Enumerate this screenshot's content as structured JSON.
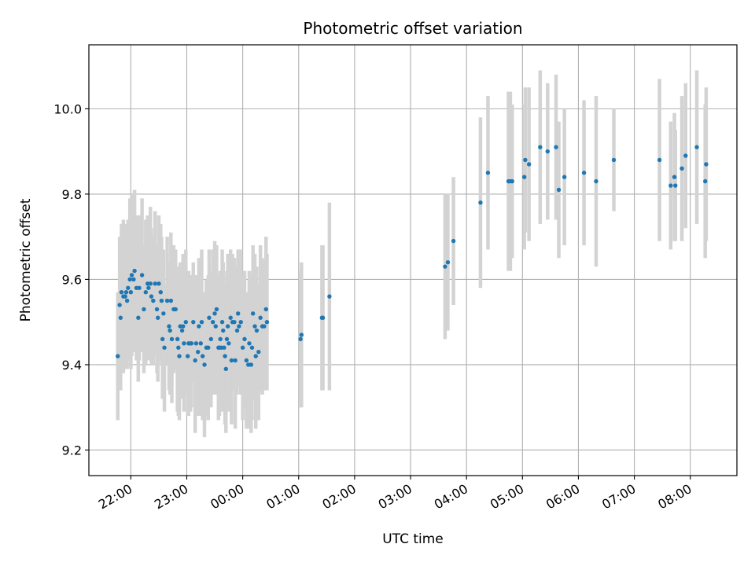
{
  "chart_data": {
    "type": "scatter",
    "title": "Photometric offset variation",
    "xlabel": "UTC time",
    "ylabel": "Photometric offset",
    "x_ticks": [
      "22:00",
      "23:00",
      "00:00",
      "01:00",
      "02:00",
      "03:00",
      "04:00",
      "05:00",
      "06:00",
      "07:00",
      "08:00"
    ],
    "y_ticks": [
      "9.2",
      "9.4",
      "9.6",
      "9.8",
      "10.0"
    ],
    "xlim": [
      "21:15",
      "08:50"
    ],
    "ylim": [
      9.14,
      10.15
    ],
    "grid": true,
    "colors": {
      "points": "#1f77b4",
      "errorbars": "#d3d3d3",
      "grid": "#b0b0b0"
    },
    "series": [
      {
        "points": [
          [
            "21:46",
            9.42,
            0.15
          ],
          [
            "21:48",
            9.54,
            0.16
          ],
          [
            "21:49",
            9.51,
            0.17
          ],
          [
            "21:50",
            9.57,
            0.16
          ],
          [
            "21:52",
            9.56,
            0.18
          ],
          [
            "21:54",
            9.56,
            0.17
          ],
          [
            "21:55",
            9.57,
            0.15
          ],
          [
            "21:56",
            9.55,
            0.16
          ],
          [
            "21:57",
            9.58,
            0.16
          ],
          [
            "21:59",
            9.6,
            0.19
          ],
          [
            "22:00",
            9.57,
            0.18
          ],
          [
            "22:01",
            9.61,
            0.19
          ],
          [
            "22:03",
            9.6,
            0.17
          ],
          [
            "22:04",
            9.62,
            0.19
          ],
          [
            "22:06",
            9.58,
            0.17
          ],
          [
            "22:08",
            9.51,
            0.15
          ],
          [
            "22:09",
            9.58,
            0.17
          ],
          [
            "22:12",
            9.61,
            0.18
          ],
          [
            "22:14",
            9.53,
            0.15
          ],
          [
            "22:16",
            9.57,
            0.17
          ],
          [
            "22:18",
            9.59,
            0.16
          ],
          [
            "22:19",
            9.58,
            0.17
          ],
          [
            "22:21",
            9.59,
            0.18
          ],
          [
            "22:22",
            9.56,
            0.16
          ],
          [
            "22:24",
            9.55,
            0.15
          ],
          [
            "22:26",
            9.59,
            0.17
          ],
          [
            "22:28",
            9.53,
            0.15
          ],
          [
            "22:29",
            9.51,
            0.15
          ],
          [
            "22:30",
            9.59,
            0.16
          ],
          [
            "22:32",
            9.57,
            0.16
          ],
          [
            "22:33",
            9.55,
            0.15
          ],
          [
            "22:34",
            9.46,
            0.14
          ],
          [
            "22:35",
            9.52,
            0.15
          ],
          [
            "22:36",
            9.44,
            0.15
          ],
          [
            "22:39",
            9.55,
            0.15
          ],
          [
            "22:41",
            9.49,
            0.15
          ],
          [
            "22:42",
            9.48,
            0.15
          ],
          [
            "22:43",
            9.55,
            0.16
          ],
          [
            "22:44",
            9.46,
            0.15
          ],
          [
            "22:46",
            9.53,
            0.15
          ],
          [
            "22:48",
            9.53,
            0.14
          ],
          [
            "22:50",
            9.46,
            0.17
          ],
          [
            "22:51",
            9.44,
            0.16
          ],
          [
            "22:52",
            9.42,
            0.15
          ],
          [
            "22:53",
            9.49,
            0.15
          ],
          [
            "22:55",
            9.48,
            0.16
          ],
          [
            "22:56",
            9.49,
            0.17
          ],
          [
            "22:57",
            9.45,
            0.16
          ],
          [
            "22:59",
            9.5,
            0.17
          ],
          [
            "23:01",
            9.42,
            0.14
          ],
          [
            "23:02",
            9.45,
            0.17
          ],
          [
            "23:04",
            9.45,
            0.16
          ],
          [
            "23:05",
            9.45,
            0.15
          ],
          [
            "23:07",
            9.5,
            0.14
          ],
          [
            "23:09",
            9.41,
            0.17
          ],
          [
            "23:10",
            9.45,
            0.16
          ],
          [
            "23:12",
            9.43,
            0.15
          ],
          [
            "23:13",
            9.49,
            0.16
          ],
          [
            "23:15",
            9.45,
            0.17
          ],
          [
            "23:16",
            9.5,
            0.17
          ],
          [
            "23:17",
            9.42,
            0.15
          ],
          [
            "23:19",
            9.4,
            0.17
          ],
          [
            "23:21",
            9.44,
            0.16
          ],
          [
            "23:23",
            9.44,
            0.17
          ],
          [
            "23:24",
            9.51,
            0.16
          ],
          [
            "23:26",
            9.46,
            0.16
          ],
          [
            "23:28",
            9.5,
            0.17
          ],
          [
            "23:30",
            9.52,
            0.17
          ],
          [
            "23:31",
            9.49,
            0.16
          ],
          [
            "23:32",
            9.53,
            0.15
          ],
          [
            "23:34",
            9.44,
            0.17
          ],
          [
            "23:35",
            9.44,
            0.16
          ],
          [
            "23:36",
            9.46,
            0.16
          ],
          [
            "23:37",
            9.44,
            0.15
          ],
          [
            "23:38",
            9.5,
            0.17
          ],
          [
            "23:39",
            9.48,
            0.16
          ],
          [
            "23:40",
            9.44,
            0.15
          ],
          [
            "23:41",
            9.42,
            0.16
          ],
          [
            "23:42",
            9.39,
            0.15
          ],
          [
            "23:43",
            9.46,
            0.16
          ],
          [
            "23:44",
            9.49,
            0.17
          ],
          [
            "23:45",
            9.45,
            0.16
          ],
          [
            "23:47",
            9.51,
            0.16
          ],
          [
            "23:48",
            9.41,
            0.15
          ],
          [
            "23:49",
            9.5,
            0.16
          ],
          [
            "23:51",
            9.5,
            0.15
          ],
          [
            "23:52",
            9.41,
            0.16
          ],
          [
            "23:54",
            9.48,
            0.15
          ],
          [
            "23:55",
            9.52,
            0.15
          ],
          [
            "23:56",
            9.49,
            0.14
          ],
          [
            "23:58",
            9.5,
            0.17
          ],
          [
            "00:00",
            9.44,
            0.17
          ],
          [
            "00:02",
            9.46,
            0.16
          ],
          [
            "00:04",
            9.41,
            0.16
          ],
          [
            "00:06",
            9.4,
            0.15
          ],
          [
            "00:07",
            9.45,
            0.17
          ],
          [
            "00:09",
            9.4,
            0.16
          ],
          [
            "00:10",
            9.44,
            0.17
          ],
          [
            "00:11",
            9.52,
            0.16
          ],
          [
            "00:13",
            9.49,
            0.17
          ],
          [
            "00:14",
            9.42,
            0.17
          ],
          [
            "00:15",
            9.48,
            0.15
          ],
          [
            "00:17",
            9.43,
            0.16
          ],
          [
            "00:19",
            9.51,
            0.17
          ],
          [
            "00:21",
            9.49,
            0.16
          ],
          [
            "00:23",
            9.49,
            0.15
          ],
          [
            "00:25",
            9.53,
            0.17
          ],
          [
            "00:26",
            9.5,
            0.16
          ],
          [
            "01:02",
            9.46,
            0.16
          ],
          [
            "01:03",
            9.47,
            0.17
          ],
          [
            "01:25",
            9.51,
            0.17
          ],
          [
            "01:26",
            9.51,
            0.17
          ],
          [
            "01:33",
            9.56,
            0.22
          ],
          [
            "03:37",
            9.63,
            0.17
          ],
          [
            "03:40",
            9.64,
            0.16
          ],
          [
            "03:46",
            9.69,
            0.15
          ],
          [
            "04:15",
            9.78,
            0.2
          ],
          [
            "04:23",
            9.85,
            0.18
          ],
          [
            "04:45",
            9.83,
            0.21
          ],
          [
            "04:47",
            9.83,
            0.21
          ],
          [
            "04:49",
            9.83,
            0.18
          ],
          [
            "05:02",
            9.84,
            0.17
          ],
          [
            "05:03",
            9.88,
            0.17
          ],
          [
            "05:07",
            9.87,
            0.18
          ],
          [
            "05:19",
            9.91,
            0.18
          ],
          [
            "05:27",
            9.9,
            0.16
          ],
          [
            "05:36",
            9.91,
            0.17
          ],
          [
            "05:39",
            9.81,
            0.16
          ],
          [
            "05:45",
            9.84,
            0.16
          ],
          [
            "06:06",
            9.85,
            0.17
          ],
          [
            "06:19",
            9.83,
            0.2
          ],
          [
            "06:38",
            9.88,
            0.12
          ],
          [
            "07:27",
            9.88,
            0.19
          ],
          [
            "07:39",
            9.82,
            0.15
          ],
          [
            "07:43",
            9.84,
            0.15
          ],
          [
            "07:44",
            9.82,
            0.13
          ],
          [
            "07:51",
            9.86,
            0.17
          ],
          [
            "07:55",
            9.89,
            0.17
          ],
          [
            "08:07",
            9.91,
            0.18
          ],
          [
            "08:16",
            9.83,
            0.18
          ],
          [
            "08:17",
            9.87,
            0.18
          ]
        ]
      }
    ]
  }
}
